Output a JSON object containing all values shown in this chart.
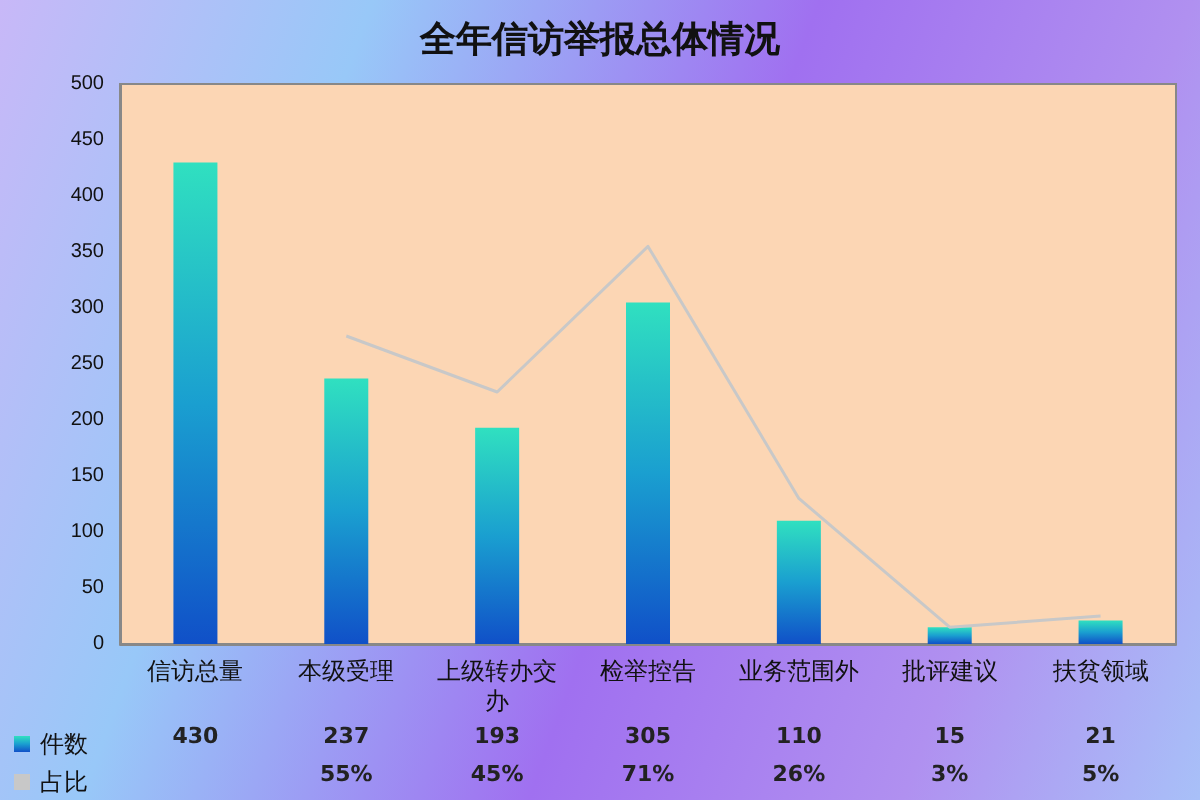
{
  "chart_data": {
    "type": "bar",
    "title": "全年信访举报总体情况",
    "categories": [
      "信访总量",
      "本级受理",
      "上级转办交办",
      "检举控告",
      "业务范围外",
      "批评建议",
      "扶贫领域"
    ],
    "series": [
      {
        "name": "件数",
        "color": "#1a9fd0",
        "values": [
          430,
          237,
          193,
          305,
          110,
          15,
          21
        ]
      },
      {
        "name": "占比",
        "type": "line",
        "axis": "y2",
        "color": "#c8c8c8",
        "values": [
          null,
          55,
          45,
          71,
          26,
          3,
          5
        ],
        "value_labels": [
          null,
          "55%",
          "45%",
          "71%",
          "26%",
          "3%",
          "5%"
        ]
      }
    ],
    "data_labels": true,
    "ylim": [
      0,
      500
    ],
    "yticks": [
      0,
      50,
      100,
      150,
      200,
      250,
      300,
      350,
      400,
      450,
      500
    ],
    "y2lim": [
      0,
      100
    ],
    "tick_labels": "xy",
    "grid": false,
    "legend": "bottom left"
  }
}
